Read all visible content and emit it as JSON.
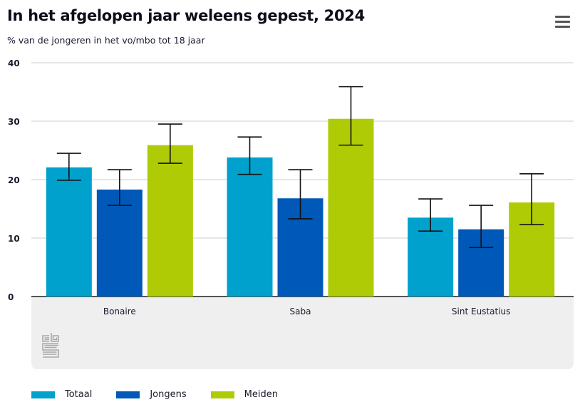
{
  "header": {
    "title": "In het afgelopen jaar weleens gepest, 2024",
    "subtitle": "% van de jongeren in het vo/mbo tot 18 jaar",
    "menu_icon": "hamburger-menu-icon"
  },
  "logo": {
    "name": "cbs-logo",
    "text": "cbs"
  },
  "chart_data": {
    "type": "bar",
    "title": "In het afgelopen jaar weleens gepest, 2024",
    "subtitle": "% van de jongeren in het vo/mbo tot 18 jaar",
    "xlabel": "",
    "ylabel": "",
    "categories": [
      "Bonaire",
      "Saba",
      "Sint Eustatius"
    ],
    "ylim": [
      0,
      40
    ],
    "yticks": [
      0,
      10,
      20,
      30,
      40
    ],
    "grid": true,
    "legend_position": "bottom-left",
    "error_bars": true,
    "series": [
      {
        "name": "Totaal",
        "color": "#00a1cd",
        "values": [
          22.1,
          23.8,
          13.5
        ],
        "error_low": [
          19.9,
          20.9,
          11.2
        ],
        "error_high": [
          24.5,
          27.3,
          16.7
        ]
      },
      {
        "name": "Jongens",
        "color": "#0058b8",
        "values": [
          18.3,
          16.8,
          11.5
        ],
        "error_low": [
          15.6,
          13.3,
          8.4
        ],
        "error_high": [
          21.7,
          21.7,
          15.6
        ]
      },
      {
        "name": "Meiden",
        "color": "#afcb05",
        "values": [
          25.9,
          30.4,
          16.1
        ],
        "error_low": [
          22.8,
          25.9,
          12.3
        ],
        "error_high": [
          29.5,
          35.9,
          21.0
        ]
      }
    ]
  }
}
